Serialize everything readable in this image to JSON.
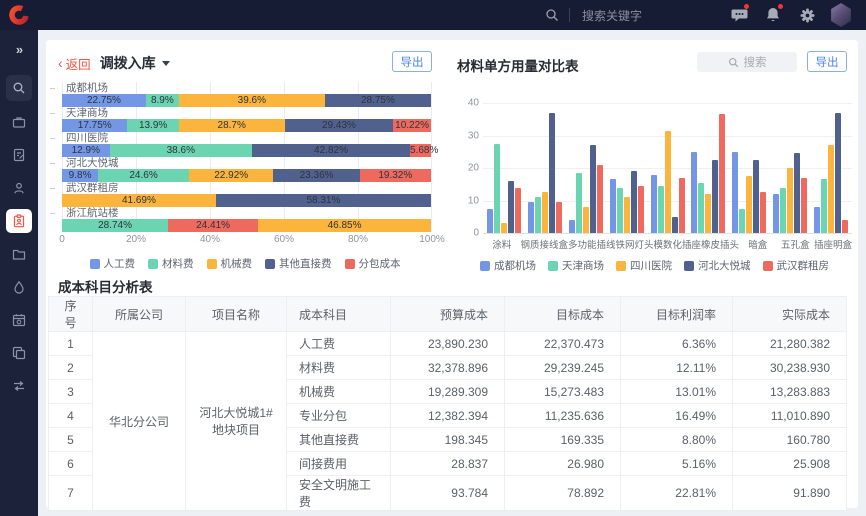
{
  "topbar": {
    "logo": "C",
    "search_placeholder": "搜索关键字",
    "icons": [
      {
        "name": "message-icon",
        "badge": true
      },
      {
        "name": "bell-icon",
        "badge": true
      },
      {
        "name": "gear-icon",
        "badge": false
      },
      {
        "name": "user-avatar",
        "badge": false
      }
    ]
  },
  "sidebar": {
    "collapse_icon": "double-chevron-right",
    "items": [
      {
        "icon": "search",
        "boxed": true,
        "active": false
      },
      {
        "icon": "briefcase",
        "boxed": false,
        "active": false
      },
      {
        "icon": "document-edit",
        "boxed": false,
        "active": false
      },
      {
        "icon": "user",
        "boxed": false,
        "active": false
      },
      {
        "icon": "clipboard-person",
        "boxed": false,
        "active": true
      },
      {
        "icon": "folder",
        "boxed": false,
        "active": false
      },
      {
        "icon": "water-drop",
        "boxed": false,
        "active": false
      },
      {
        "icon": "calendar-gear",
        "boxed": false,
        "active": false
      },
      {
        "icon": "copy",
        "boxed": false,
        "active": false
      },
      {
        "icon": "transfer-arrows",
        "boxed": false,
        "active": false
      }
    ]
  },
  "left_panel": {
    "back": "返回",
    "title": "调拨入库",
    "export_label": "导出"
  },
  "right_panel": {
    "title": "材料单方用量对比表",
    "search_placeholder": "搜索",
    "export_label": "导出"
  },
  "chart_data": [
    {
      "type": "bar",
      "variant": "horizontal-stacked",
      "unit": "%",
      "x_ticks": [
        "0",
        "20%",
        "40%",
        "60%",
        "80%",
        "100%"
      ],
      "legend": [
        "人工费",
        "材料费",
        "机械费",
        "其他直接费",
        "分包成本"
      ],
      "series_colors": {
        "人工费": "#7396E5",
        "材料费": "#6BD4B0",
        "机械费": "#FBB43C",
        "其他直接费": "#51618E",
        "分包成本": "#EE6A5F"
      },
      "rows": [
        {
          "category": "成都机场",
          "segments": [
            {
              "series": "人工费",
              "value": 22.75
            },
            {
              "series": "材料费",
              "value": 8.9
            },
            {
              "series": "机械费",
              "value": 39.6
            },
            {
              "series": "其他直接费",
              "value": 28.75
            }
          ]
        },
        {
          "category": "天津商场",
          "segments": [
            {
              "series": "人工费",
              "value": 17.75
            },
            {
              "series": "材料费",
              "value": 13.9
            },
            {
              "series": "机械费",
              "value": 28.7
            },
            {
              "series": "其他直接费",
              "value": 29.43
            },
            {
              "series": "分包成本",
              "value": 10.22
            }
          ]
        },
        {
          "category": "四川医院",
          "segments": [
            {
              "series": "人工费",
              "value": 12.9
            },
            {
              "series": "材料费",
              "value": 38.6
            },
            {
              "series": "其他直接费",
              "value": 42.82
            },
            {
              "series": "分包成本",
              "value": 5.68
            }
          ]
        },
        {
          "category": "河北大悦城",
          "segments": [
            {
              "series": "人工费",
              "value": 9.8
            },
            {
              "series": "材料费",
              "value": 24.6
            },
            {
              "series": "机械费",
              "value": 22.92
            },
            {
              "series": "其他直接费",
              "value": 23.36
            },
            {
              "series": "分包成本",
              "value": 19.32
            }
          ]
        },
        {
          "category": "武汉群租房",
          "segments": [
            {
              "series": "机械费",
              "value": 41.69
            },
            {
              "series": "其他直接费",
              "value": 58.31
            }
          ]
        },
        {
          "category": "浙江航站楼",
          "segments": [
            {
              "series": "材料费",
              "value": 28.74
            },
            {
              "series": "分包成本",
              "value": 24.41
            },
            {
              "series": "机械费",
              "value": 46.85
            }
          ]
        }
      ]
    },
    {
      "type": "bar",
      "variant": "vertical-grouped",
      "title": "材料单方用量对比表",
      "categories": [
        "涂料",
        "钢质接线盒",
        "多功能插线",
        "铁网灯头",
        "模数化插座",
        "橡皮插头",
        "暗盒",
        "五孔盒",
        "插座明盒"
      ],
      "y_ticks": [
        0,
        10,
        20,
        30,
        40
      ],
      "ylim": [
        0,
        40
      ],
      "legend": [
        "成都机场",
        "天津商场",
        "四川医院",
        "河北大悦城",
        "武汉群租房"
      ],
      "series_colors": {
        "成都机场": "#7396E5",
        "天津商场": "#6BD4B0",
        "四川医院": "#FBB43C",
        "河北大悦城": "#51618E",
        "武汉群租房": "#EE6A5F"
      },
      "series": [
        {
          "name": "成都机场",
          "values": [
            7.5,
            9.5,
            4,
            16.5,
            18,
            25,
            25,
            12,
            8
          ]
        },
        {
          "name": "天津商场",
          "values": [
            27.5,
            11,
            18.5,
            14,
            14.5,
            15.5,
            7.5,
            14,
            16.5
          ]
        },
        {
          "name": "四川医院",
          "values": [
            3,
            12.5,
            8,
            11,
            31.5,
            12,
            17.5,
            20,
            27
          ]
        },
        {
          "name": "河北大悦城",
          "values": [
            16,
            37,
            27,
            19,
            5,
            22.5,
            22.5,
            24.5,
            37
          ]
        },
        {
          "name": "武汉群租房",
          "values": [
            14,
            9.5,
            21,
            14.5,
            17,
            36.5,
            12.5,
            17,
            4
          ]
        }
      ]
    }
  ],
  "table": {
    "title": "成本科目分析表",
    "columns": [
      "序号",
      "所属公司",
      "项目名称",
      "成本科目",
      "预算成本",
      "目标成本",
      "目标利润率",
      "实际成本"
    ],
    "company": "华北分公司",
    "project": "河北大悦城1#地块项目",
    "rows": [
      {
        "no": "1",
        "subject": "人工费",
        "budget": "23,890.230",
        "target": "22,370.473",
        "margin": "6.36%",
        "actual": "21,280.382"
      },
      {
        "no": "2",
        "subject": "材料费",
        "budget": "32,378.896",
        "target": "29,239.245",
        "margin": "12.11%",
        "actual": "30,238.930"
      },
      {
        "no": "3",
        "subject": "机械费",
        "budget": "19,289.309",
        "target": "15,273.483",
        "margin": "13.01%",
        "actual": "13,283.883"
      },
      {
        "no": "4",
        "subject": "专业分包",
        "budget": "12,382.394",
        "target": "11,235.636",
        "margin": "16.49%",
        "actual": "11,010.890"
      },
      {
        "no": "5",
        "subject": "其他直接费",
        "budget": "198.345",
        "target": "169.335",
        "margin": "8.80%",
        "actual": "160.780"
      },
      {
        "no": "6",
        "subject": "间接费用",
        "budget": "28.837",
        "target": "26.980",
        "margin": "5.16%",
        "actual": "25.908"
      },
      {
        "no": "7",
        "subject": "安全文明施工费",
        "budget": "93.784",
        "target": "78.892",
        "margin": "22.81%",
        "actual": "91.890"
      }
    ]
  },
  "colors": {
    "topbar_bg": "#151C33",
    "sidebar_bg": "#1B2239",
    "accent_red": "#F0553F",
    "button_blue": "#4C86EC",
    "page_bg": "#EDF0F4",
    "badge_red": "#F4333C"
  }
}
